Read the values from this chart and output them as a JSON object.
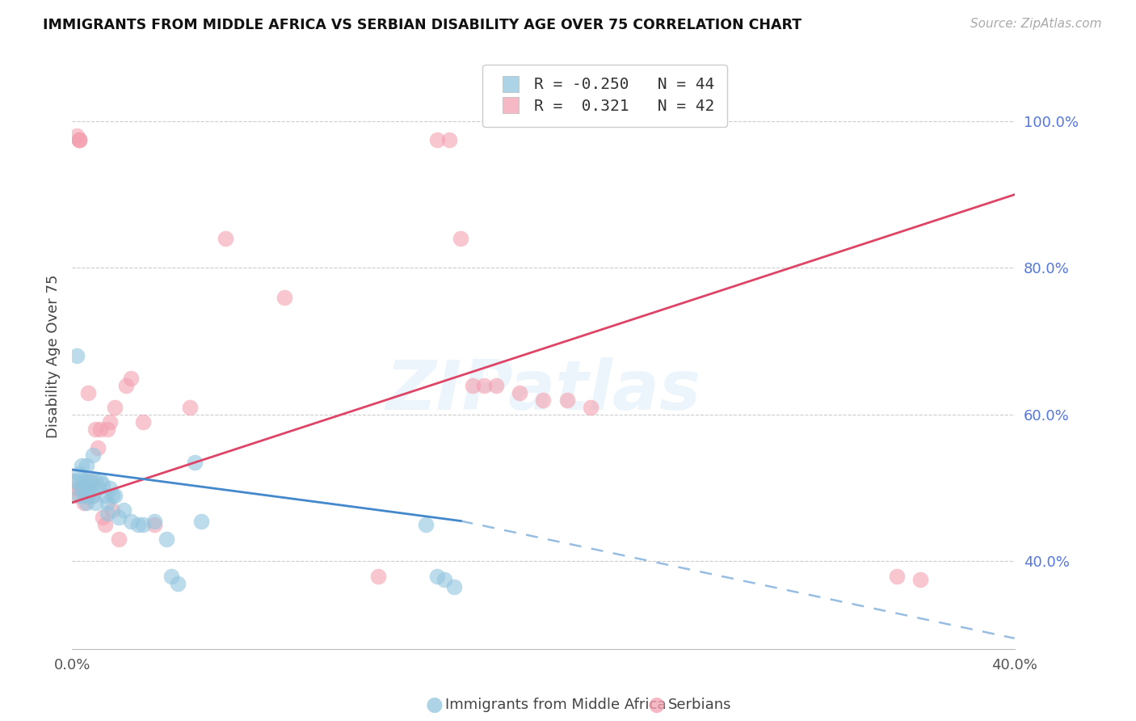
{
  "title": "IMMIGRANTS FROM MIDDLE AFRICA VS SERBIAN DISABILITY AGE OVER 75 CORRELATION CHART",
  "source": "Source: ZipAtlas.com",
  "ylabel": "Disability Age Over 75",
  "xlim": [
    0.0,
    0.4
  ],
  "ylim": [
    0.28,
    1.08
  ],
  "right_yticks": [
    1.0,
    0.8,
    0.6,
    0.4
  ],
  "right_yticklabels": [
    "100.0%",
    "80.0%",
    "60.0%",
    "40.0%"
  ],
  "legend_blue_label": "R = -0.250   N = 44",
  "legend_pink_label": "R =  0.321   N = 42",
  "blue_color": "#92c5de",
  "pink_color": "#f4a0b0",
  "blue_line_color": "#4488cc",
  "pink_line_color": "#dd4466",
  "watermark_text": "ZIPatlas",
  "pink_line_x0": 0.0,
  "pink_line_y0": 0.48,
  "pink_line_x1": 0.4,
  "pink_line_y1": 0.9,
  "blue_line_solid_x0": 0.0,
  "blue_line_solid_y0": 0.525,
  "blue_line_solid_x1": 0.165,
  "blue_line_solid_y1": 0.455,
  "blue_line_dash_x0": 0.165,
  "blue_line_dash_y0": 0.455,
  "blue_line_dash_x1": 0.4,
  "blue_line_dash_y1": 0.295,
  "blue_scatter_x": [
    0.001,
    0.002,
    0.002,
    0.003,
    0.003,
    0.004,
    0.004,
    0.005,
    0.005,
    0.006,
    0.006,
    0.006,
    0.007,
    0.007,
    0.008,
    0.008,
    0.009,
    0.009,
    0.01,
    0.01,
    0.011,
    0.012,
    0.013,
    0.014,
    0.015,
    0.015,
    0.016,
    0.017,
    0.018,
    0.02,
    0.022,
    0.025,
    0.028,
    0.03,
    0.035,
    0.04,
    0.042,
    0.045,
    0.052,
    0.055,
    0.15,
    0.155,
    0.158,
    0.162
  ],
  "blue_scatter_y": [
    0.51,
    0.51,
    0.68,
    0.49,
    0.52,
    0.5,
    0.53,
    0.49,
    0.51,
    0.48,
    0.51,
    0.53,
    0.5,
    0.49,
    0.51,
    0.495,
    0.49,
    0.545,
    0.48,
    0.51,
    0.5,
    0.51,
    0.505,
    0.49,
    0.48,
    0.465,
    0.5,
    0.49,
    0.49,
    0.46,
    0.47,
    0.455,
    0.45,
    0.45,
    0.455,
    0.43,
    0.38,
    0.37,
    0.535,
    0.455,
    0.45,
    0.38,
    0.375,
    0.365
  ],
  "pink_scatter_x": [
    0.001,
    0.002,
    0.002,
    0.003,
    0.003,
    0.003,
    0.004,
    0.005,
    0.006,
    0.007,
    0.008,
    0.009,
    0.01,
    0.011,
    0.012,
    0.013,
    0.014,
    0.015,
    0.016,
    0.017,
    0.018,
    0.02,
    0.023,
    0.025,
    0.03,
    0.035,
    0.05,
    0.065,
    0.09,
    0.13,
    0.155,
    0.16,
    0.165,
    0.17,
    0.175,
    0.18,
    0.19,
    0.2,
    0.21,
    0.22,
    0.35,
    0.36
  ],
  "pink_scatter_y": [
    0.49,
    0.5,
    0.98,
    0.975,
    0.975,
    0.975,
    0.5,
    0.48,
    0.49,
    0.63,
    0.51,
    0.49,
    0.58,
    0.555,
    0.58,
    0.46,
    0.45,
    0.58,
    0.59,
    0.47,
    0.61,
    0.43,
    0.64,
    0.65,
    0.59,
    0.45,
    0.61,
    0.84,
    0.76,
    0.38,
    0.975,
    0.975,
    0.84,
    0.64,
    0.64,
    0.64,
    0.63,
    0.62,
    0.62,
    0.61,
    0.38,
    0.375
  ]
}
